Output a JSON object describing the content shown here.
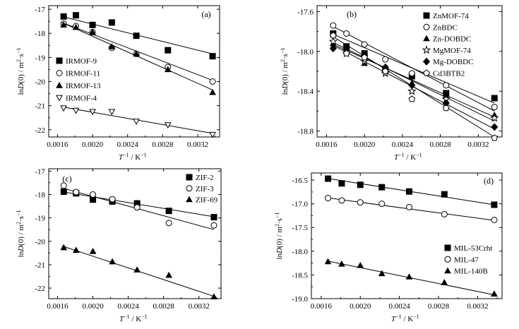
{
  "chart_data": [
    {
      "type": "scatter",
      "panel_label": "(a)",
      "xlabel_base": "T",
      "xlabel_sup": "−1",
      "xlabel_unit": " / K",
      "xlabel_unit_sup": "−1",
      "ylabel_pre": "ln",
      "ylabel_italic": "D",
      "ylabel_post": "(0) / m",
      "ylabel_sup1": "2",
      "ylabel_mid": "·s",
      "ylabel_sup2": "−1",
      "xlim": [
        0.0015,
        0.00345
      ],
      "ylim": [
        -22.3,
        -16.85
      ],
      "xticks": [
        0.0016,
        0.002,
        0.0024,
        0.0028,
        0.0032
      ],
      "xtick_labels": [
        "0.0016",
        "0.0020",
        "0.0024",
        "0.0028",
        "0.0032"
      ],
      "yticks": [
        -22,
        -21,
        -20,
        -19,
        -18,
        -17
      ],
      "ytick_labels": [
        "-22",
        "-21",
        "-20",
        "-19",
        "-18",
        "-17"
      ],
      "legend_position": "center-left",
      "series": [
        {
          "name": "IRMOF-9",
          "marker": "square-filled",
          "x": [
            0.00167,
            0.00181,
            0.002,
            0.00222,
            0.0025,
            0.00286,
            0.00337
          ],
          "y": [
            -17.3,
            -17.25,
            -17.65,
            -17.55,
            -18.1,
            -18.7,
            -18.95
          ],
          "fit": [
            [
              0.00165,
              -17.3
            ],
            [
              0.00337,
              -18.85
            ]
          ]
        },
        {
          "name": "IRMOF-11",
          "marker": "circle-open",
          "x": [
            0.00167,
            0.00181,
            0.002,
            0.00222,
            0.0025,
            0.00286,
            0.00337
          ],
          "y": [
            -17.6,
            -17.7,
            -17.95,
            -18.6,
            -18.85,
            -19.4,
            -20.0
          ],
          "fit": [
            [
              0.00165,
              -17.55
            ],
            [
              0.00337,
              -19.95
            ]
          ]
        },
        {
          "name": "IRMOF-13",
          "marker": "triangle-filled",
          "x": [
            0.00167,
            0.00181,
            0.002,
            0.00222,
            0.0025,
            0.00286,
            0.00337
          ],
          "y": [
            -17.65,
            -17.75,
            -17.95,
            -18.55,
            -18.85,
            -19.5,
            -20.45
          ],
          "fit": [
            [
              0.00165,
              -17.55
            ],
            [
              0.00337,
              -20.35
            ]
          ]
        },
        {
          "name": "IRMOF-4",
          "marker": "triangle-down-open",
          "x": [
            0.00167,
            0.00181,
            0.002,
            0.00222,
            0.0025,
            0.00286,
            0.00337
          ],
          "y": [
            -21.1,
            -21.2,
            -21.25,
            -21.25,
            -21.65,
            -21.8,
            -22.2
          ],
          "fit": [
            [
              0.00165,
              -21.05
            ],
            [
              0.00337,
              -22.15
            ]
          ]
        }
      ]
    },
    {
      "type": "scatter",
      "panel_label": "(b)",
      "xlabel_base": "T",
      "xlabel_sup": "−1",
      "xlabel_unit": " / K",
      "xlabel_unit_sup": "−1",
      "ylabel_pre": "ln",
      "ylabel_italic": "D",
      "ylabel_post": "(0) / m",
      "ylabel_sup1": "2",
      "ylabel_mid": "·s",
      "ylabel_sup2": "−1",
      "xlim": [
        0.0015,
        0.00345
      ],
      "ylim": [
        -18.86,
        -17.54
      ],
      "xticks": [
        0.0016,
        0.002,
        0.0024,
        0.0028,
        0.0032
      ],
      "xtick_labels": [
        "0.0016",
        "0.0020",
        "0.0024",
        "0.0028",
        "0.0032"
      ],
      "yticks": [
        -18.8,
        -18.4,
        -18.0,
        -17.6
      ],
      "ytick_labels": [
        "-18.8",
        "-18.4",
        "-18.0",
        "-17.6"
      ],
      "legend_position": "top-right",
      "series": [
        {
          "name": "ZnMOF-74",
          "marker": "square-filled",
          "x": [
            0.00167,
            0.00181,
            0.002,
            0.00222,
            0.0025,
            0.00286,
            0.00337
          ],
          "y": [
            -17.82,
            -17.95,
            -18.02,
            -18.18,
            -18.25,
            -18.42,
            -18.47
          ],
          "fit": [
            [
              0.00165,
              -17.82
            ],
            [
              0.00337,
              -18.52
            ]
          ]
        },
        {
          "name": "ZnBDC",
          "marker": "circle-open",
          "x": [
            0.00167,
            0.00181,
            0.002,
            0.00222,
            0.0025,
            0.00286,
            0.00337
          ],
          "y": [
            -17.74,
            -17.82,
            -17.93,
            -18.08,
            -18.22,
            -18.34,
            -18.56
          ],
          "fit": [
            [
              0.00165,
              -17.74
            ],
            [
              0.00337,
              -18.6
            ]
          ]
        },
        {
          "name": "Zn-DOBDC",
          "marker": "triangle-filled",
          "x": [
            0.00167,
            0.00181,
            0.002,
            0.00222,
            0.0025,
            0.00286,
            0.00337
          ],
          "y": [
            -17.92,
            -18.0,
            -18.12,
            -18.18,
            -18.32,
            -18.45,
            -18.64
          ],
          "fit": [
            [
              0.00165,
              -17.92
            ],
            [
              0.00337,
              -18.66
            ]
          ]
        },
        {
          "name": "MgMOF-74",
          "marker": "star-open",
          "x": [
            0.00167,
            0.00181,
            0.002,
            0.00222,
            0.0025,
            0.00286,
            0.00337
          ],
          "y": [
            -17.9,
            -18.02,
            -18.1,
            -18.22,
            -18.4,
            -18.48,
            -18.67
          ],
          "fit": [
            [
              0.00165,
              -17.9
            ],
            [
              0.00337,
              -18.7
            ]
          ]
        },
        {
          "name": "Mg-DOBDC",
          "marker": "diamond-filled",
          "x": [
            0.00167,
            0.00181,
            0.002,
            0.00222,
            0.0025,
            0.00286,
            0.00337
          ],
          "y": [
            -17.97,
            -17.98,
            -18.04,
            -18.16,
            -18.34,
            -18.52,
            -18.76
          ],
          "fit": [
            [
              0.00165,
              -17.93
            ],
            [
              0.00337,
              -18.78
            ]
          ]
        },
        {
          "name": "Cd3BTB2",
          "marker": "pentagon-open",
          "x": [
            0.00167,
            0.00181,
            0.002,
            0.00222,
            0.0025,
            0.00286,
            0.00337
          ],
          "y": [
            -17.84,
            -18.02,
            -18.06,
            -18.2,
            -18.48,
            -18.57,
            -18.87
          ],
          "fit": [
            [
              0.00165,
              -17.84
            ],
            [
              0.00337,
              -18.86
            ]
          ]
        }
      ]
    },
    {
      "type": "scatter",
      "panel_label": "(c)",
      "xlabel_base": "T",
      "xlabel_sup": "−1",
      "xlabel_unit": " / K",
      "xlabel_unit_sup": "−1",
      "ylabel_pre": "ln",
      "ylabel_italic": "D",
      "ylabel_post": "(0) / m",
      "ylabel_sup1": "2",
      "ylabel_mid": "·s",
      "ylabel_sup2": "−1",
      "xlim": [
        0.0015,
        0.00345
      ],
      "ylim": [
        -22.45,
        -16.9
      ],
      "xticks": [
        0.0016,
        0.002,
        0.0024,
        0.0028,
        0.0032
      ],
      "xtick_labels": [
        "0.0016",
        "0.0020",
        "0.0024",
        "0.0028",
        "0.0032"
      ],
      "yticks": [
        -22,
        -21,
        -20,
        -19,
        -18,
        -17
      ],
      "ytick_labels": [
        "-22",
        "-21",
        "-20",
        "-19",
        "-18",
        "-17"
      ],
      "legend_position": "top-right",
      "series": [
        {
          "name": "ZIF-2",
          "marker": "square-filled",
          "x": [
            0.00167,
            0.00181,
            0.002,
            0.00222,
            0.0025,
            0.00286,
            0.00337
          ],
          "y": [
            -17.88,
            -17.95,
            -18.22,
            -18.3,
            -18.38,
            -18.7,
            -18.97
          ],
          "fit": [
            [
              0.00165,
              -17.88
            ],
            [
              0.00337,
              -18.95
            ]
          ]
        },
        {
          "name": "ZIF-3",
          "marker": "circle-open",
          "x": [
            0.00167,
            0.00181,
            0.002,
            0.00222,
            0.0025,
            0.00286,
            0.00337
          ],
          "y": [
            -17.62,
            -17.9,
            -18.0,
            -18.2,
            -18.55,
            -19.22,
            -19.32
          ],
          "fit": [
            [
              0.00165,
              -17.72
            ],
            [
              0.00337,
              -19.5
            ]
          ]
        },
        {
          "name": "ZIF-69",
          "marker": "triangle-filled",
          "x": [
            0.00167,
            0.00181,
            0.002,
            0.00222,
            0.0025,
            0.00286,
            0.00337
          ],
          "y": [
            -20.27,
            -20.38,
            -20.43,
            -20.87,
            -21.22,
            -21.45,
            -22.37
          ],
          "fit": [
            [
              0.00165,
              -20.2
            ],
            [
              0.00337,
              -22.35
            ]
          ]
        }
      ]
    },
    {
      "type": "scatter",
      "panel_label": "(d)",
      "xlabel_base": "T",
      "xlabel_sup": "−1",
      "xlabel_unit": " / K",
      "xlabel_unit_sup": "−1",
      "ylabel_pre": "ln",
      "ylabel_italic": "D",
      "ylabel_post": "(0) / m",
      "ylabel_sup1": "2",
      "ylabel_mid": "·s",
      "ylabel_sup2": "−1",
      "xlim": [
        0.0015,
        0.00345
      ],
      "ylim": [
        -19.0,
        -16.35
      ],
      "xticks": [
        0.0016,
        0.002,
        0.0024,
        0.0028,
        0.0032
      ],
      "xtick_labels": [
        "0.0016",
        "0.0020",
        "0.0024",
        "0.0028",
        "0.0032"
      ],
      "yticks": [
        -19.0,
        -18.5,
        -18.0,
        -17.5,
        -17.0,
        -16.5
      ],
      "ytick_labels": [
        "-19.0",
        "-18.5",
        "-18.0",
        "-17.5",
        "-17.0",
        "-16.5"
      ],
      "legend_position": "bottom-right",
      "series": [
        {
          "name": "MIL-53Crht",
          "marker": "square-filled",
          "x": [
            0.00167,
            0.00181,
            0.002,
            0.00222,
            0.0025,
            0.00286,
            0.00337
          ],
          "y": [
            -16.47,
            -16.57,
            -16.6,
            -16.65,
            -16.74,
            -16.8,
            -17.02
          ],
          "fit": [
            [
              0.00165,
              -16.46
            ],
            [
              0.00337,
              -17.02
            ]
          ]
        },
        {
          "name": "MIL-47",
          "marker": "circle-open",
          "x": [
            0.00167,
            0.00181,
            0.002,
            0.00222,
            0.0025,
            0.00286,
            0.00337
          ],
          "y": [
            -16.88,
            -16.93,
            -16.97,
            -17.0,
            -17.07,
            -17.22,
            -17.34
          ],
          "fit": [
            [
              0.00165,
              -16.87
            ],
            [
              0.00337,
              -17.35
            ]
          ]
        },
        {
          "name": "MIL-140B",
          "marker": "triangle-filled",
          "x": [
            0.00167,
            0.00181,
            0.002,
            0.00222,
            0.0025,
            0.00286,
            0.00337
          ],
          "y": [
            -18.22,
            -18.27,
            -18.3,
            -18.47,
            -18.54,
            -18.66,
            -18.9
          ],
          "fit": [
            [
              0.00165,
              -18.2
            ],
            [
              0.00337,
              -18.92
            ]
          ]
        }
      ]
    }
  ]
}
